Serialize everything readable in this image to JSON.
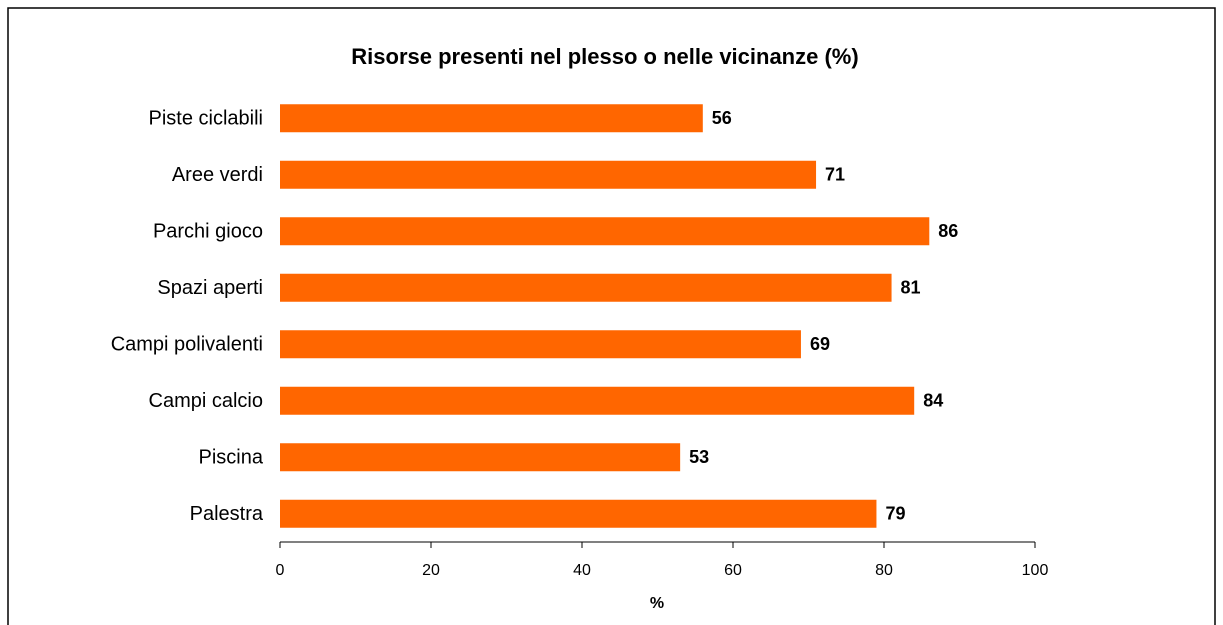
{
  "chart_data": {
    "type": "bar",
    "orientation": "horizontal",
    "title": "Risorse presenti nel plesso o nelle vicinanze (%)",
    "x_label": "%",
    "categories": [
      "Piste ciclabili",
      "Aree verdi",
      "Parchi gioco",
      "Spazi aperti",
      "Campi polivalenti",
      "Campi calcio",
      "Piscina",
      "Palestra"
    ],
    "values": [
      56,
      71,
      86,
      81,
      69,
      84,
      53,
      79
    ],
    "color": "#ff6600",
    "xlim": [
      0,
      100
    ],
    "xticks": [
      0,
      20,
      40,
      60,
      80,
      100
    ],
    "grid": false
  }
}
